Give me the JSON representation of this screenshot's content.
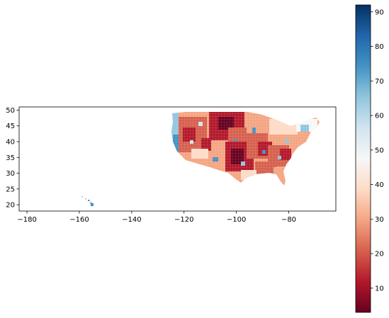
{
  "map": {
    "x_ticks": [
      "−180",
      "−160",
      "−140",
      "−120",
      "−100",
      "−80"
    ],
    "x_tick_values": [
      -180,
      -160,
      -140,
      -120,
      -100,
      -80
    ],
    "y_ticks": [
      "20",
      "25",
      "30",
      "35",
      "40",
      "45",
      "50"
    ],
    "y_tick_values": [
      20,
      25,
      30,
      35,
      40,
      45,
      50
    ],
    "xlim": [
      -183,
      -62
    ],
    "ylim": [
      18,
      51
    ]
  },
  "colorbar": {
    "ticks": [
      "10",
      "20",
      "30",
      "40",
      "50",
      "60",
      "70",
      "80",
      "90"
    ],
    "tick_values": [
      10,
      20,
      30,
      40,
      50,
      60,
      70,
      80,
      90
    ],
    "range": [
      3,
      92
    ],
    "colormap": "RdBu",
    "colors": [
      "#67001f",
      "#b2182b",
      "#d6604d",
      "#f4a582",
      "#fddbc7",
      "#f7f7f7",
      "#d1e5f0",
      "#92c5de",
      "#4393c3",
      "#2166ac",
      "#053061"
    ]
  }
}
